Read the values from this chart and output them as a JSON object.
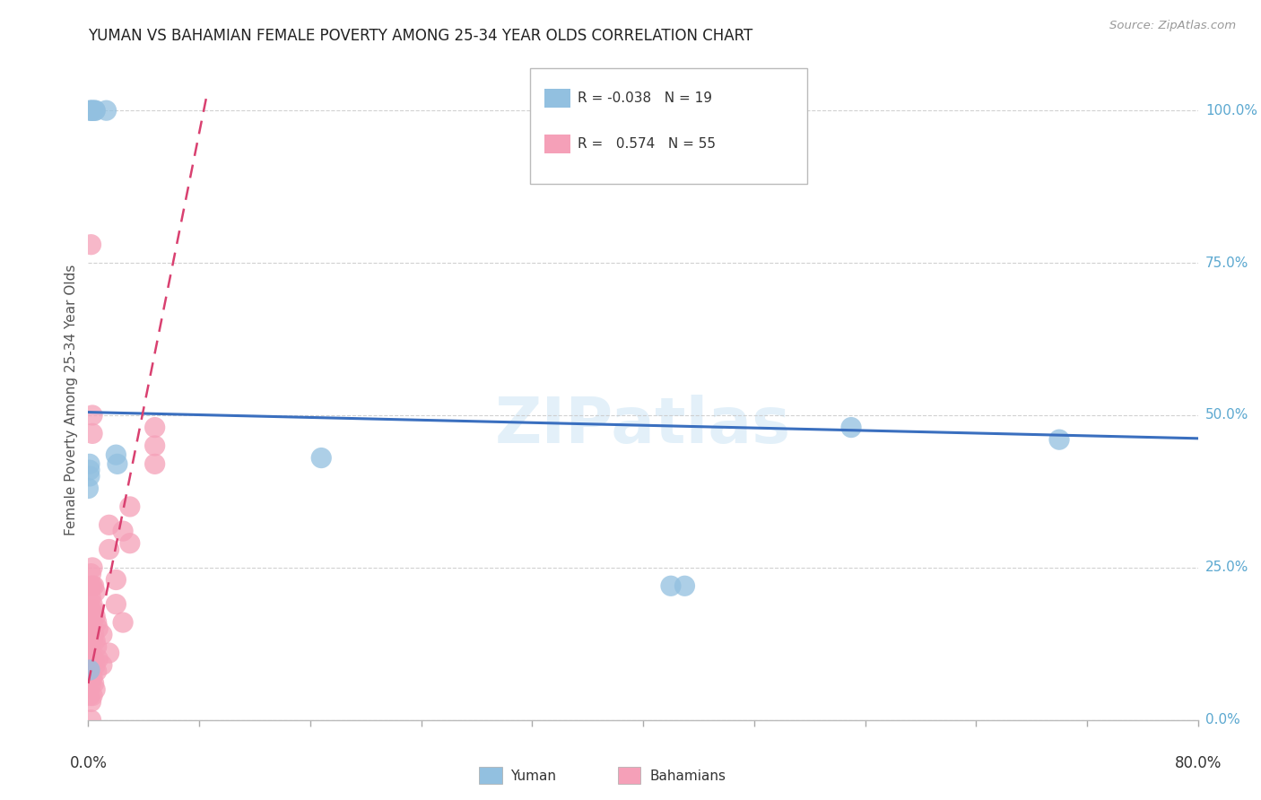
{
  "title": "YUMAN VS BAHAMIAN FEMALE POVERTY AMONG 25-34 YEAR OLDS CORRELATION CHART",
  "source": "Source: ZipAtlas.com",
  "ylabel": "Female Poverty Among 25-34 Year Olds",
  "ytick_labels": [
    "0.0%",
    "25.0%",
    "50.0%",
    "75.0%",
    "100.0%"
  ],
  "ytick_values": [
    0.0,
    0.25,
    0.5,
    0.75,
    1.0
  ],
  "xlim": [
    0.0,
    0.8
  ],
  "ylim": [
    0.0,
    1.05
  ],
  "legend_yuman_R": "-0.038",
  "legend_yuman_N": "19",
  "legend_bahamian_R": "0.574",
  "legend_bahamian_N": "55",
  "color_yuman": "#92c0e0",
  "color_bahamian": "#f5a0b8",
  "color_trend_yuman": "#3a6fbf",
  "color_trend_bahamian": "#d94070",
  "grid_color": "#cccccc",
  "bg_color": "#ffffff",
  "yuman_x": [
    0.001,
    0.002,
    0.003,
    0.003,
    0.005,
    0.005,
    0.013,
    0.02,
    0.021,
    0.168,
    0.42,
    0.43,
    0.55,
    0.7,
    0.001,
    0.001,
    0.001,
    0.001,
    0.0
  ],
  "yuman_y": [
    1.0,
    1.0,
    1.0,
    1.0,
    1.0,
    1.0,
    1.0,
    0.435,
    0.42,
    0.43,
    0.22,
    0.22,
    0.48,
    0.46,
    0.42,
    0.41,
    0.082,
    0.4,
    0.38
  ],
  "bahamian_x": [
    0.001,
    0.001,
    0.001,
    0.001,
    0.001,
    0.002,
    0.002,
    0.002,
    0.002,
    0.002,
    0.002,
    0.002,
    0.002,
    0.002,
    0.002,
    0.003,
    0.003,
    0.003,
    0.003,
    0.003,
    0.003,
    0.003,
    0.003,
    0.004,
    0.004,
    0.004,
    0.004,
    0.004,
    0.005,
    0.005,
    0.005,
    0.005,
    0.005,
    0.006,
    0.006,
    0.006,
    0.007,
    0.007,
    0.01,
    0.01,
    0.015,
    0.015,
    0.015,
    0.02,
    0.02,
    0.025,
    0.025,
    0.03,
    0.03,
    0.048,
    0.048,
    0.048,
    0.002,
    0.003,
    0.003
  ],
  "bahamian_y": [
    0.04,
    0.07,
    0.1,
    0.14,
    0.18,
    0.0,
    0.03,
    0.06,
    0.09,
    0.12,
    0.15,
    0.18,
    0.2,
    0.22,
    0.24,
    0.04,
    0.07,
    0.1,
    0.13,
    0.16,
    0.19,
    0.22,
    0.25,
    0.06,
    0.1,
    0.14,
    0.18,
    0.22,
    0.05,
    0.09,
    0.13,
    0.17,
    0.21,
    0.08,
    0.12,
    0.16,
    0.1,
    0.15,
    0.09,
    0.14,
    0.11,
    0.28,
    0.32,
    0.19,
    0.23,
    0.16,
    0.31,
    0.29,
    0.35,
    0.42,
    0.45,
    0.48,
    0.78,
    0.5,
    0.47
  ]
}
